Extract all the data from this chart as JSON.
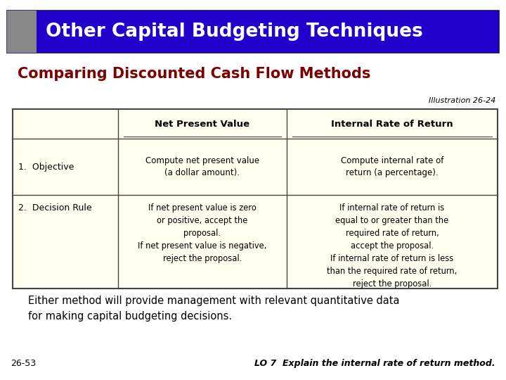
{
  "title_banner_text": "Other Capital Budgeting Techniques",
  "title_banner_bg": "#2200CC",
  "title_banner_gray": "#888888",
  "subtitle": "Comparing Discounted Cash Flow Methods",
  "subtitle_color": "#7B0000",
  "illustration_label": "Illustration 26-24",
  "table_bg": "#FFFFF0",
  "table_border": "#444444",
  "col1_header": "Net Present Value",
  "col2_header": "Internal Rate of Return",
  "row1_label": "1.  Objective",
  "row1_col1": "Compute net present value\n(a dollar amount).",
  "row1_col2": "Compute internal rate of\nreturn (a percentage).",
  "row2_label": "2.  Decision Rule",
  "row2_col1": "If net present value is zero\nor positive, accept the\nproposal.\nIf net present value is negative,\nreject the proposal.",
  "row2_col2": "If internal rate of return is\nequal to or greater than the\nrequired rate of return,\naccept the proposal.\nIf internal rate of return is less\nthan the required rate of return,\nreject the proposal.",
  "footer_text": "Either method will provide management with relevant quantitative data\nfor making capital budgeting decisions.",
  "footnote_left": "26-53",
  "footnote_right": "LO 7  Explain the internal rate of return method.",
  "bg_color": "#FFFFFF"
}
